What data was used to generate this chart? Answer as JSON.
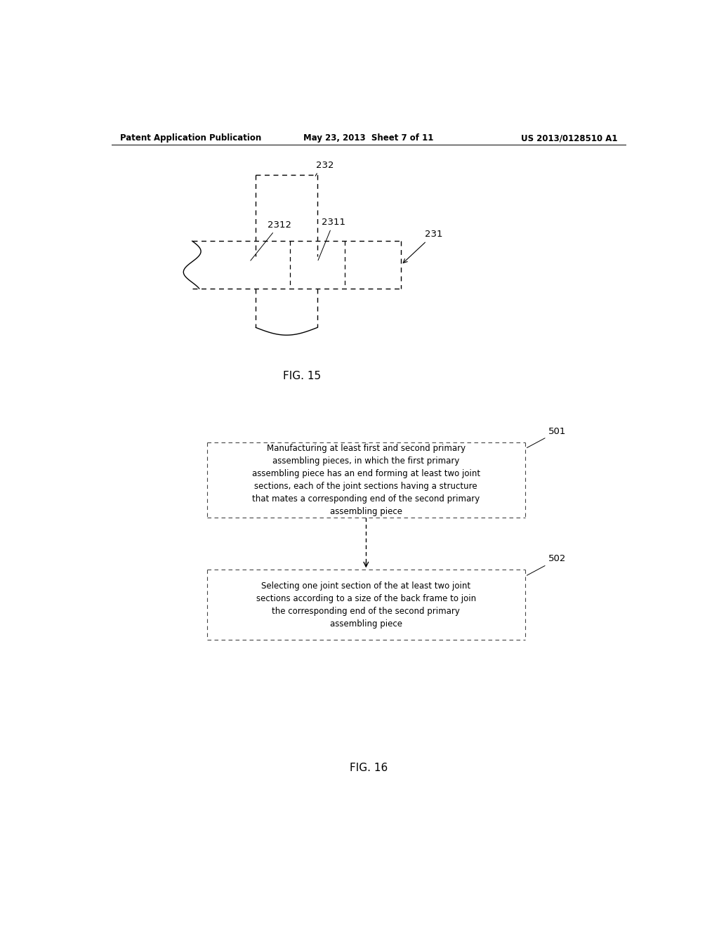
{
  "bg_color": "#ffffff",
  "text_color": "#000000",
  "header_left": "Patent Application Publication",
  "header_mid": "May 23, 2013  Sheet 7 of 11",
  "header_right": "US 2013/0128510 A1",
  "fig15_label": "FIG. 15",
  "fig16_label": "FIG. 16",
  "label_232": "232",
  "label_2312": "2312",
  "label_2311": "2311",
  "label_231": "231",
  "label_501": "501",
  "label_502": "502",
  "box501_text": "Manufacturing at least first and second primary\nassembling pieces, in which the first primary\nassembling piece has an end forming at least two joint\nsections, each of the joint sections having a structure\nthat mates a corresponding end of the second primary\nassembling piece",
  "box502_text": "Selecting one joint section of the at least two joint\nsections according to a size of the back frame to join\nthe corresponding end of the second primary\nassembling piece"
}
